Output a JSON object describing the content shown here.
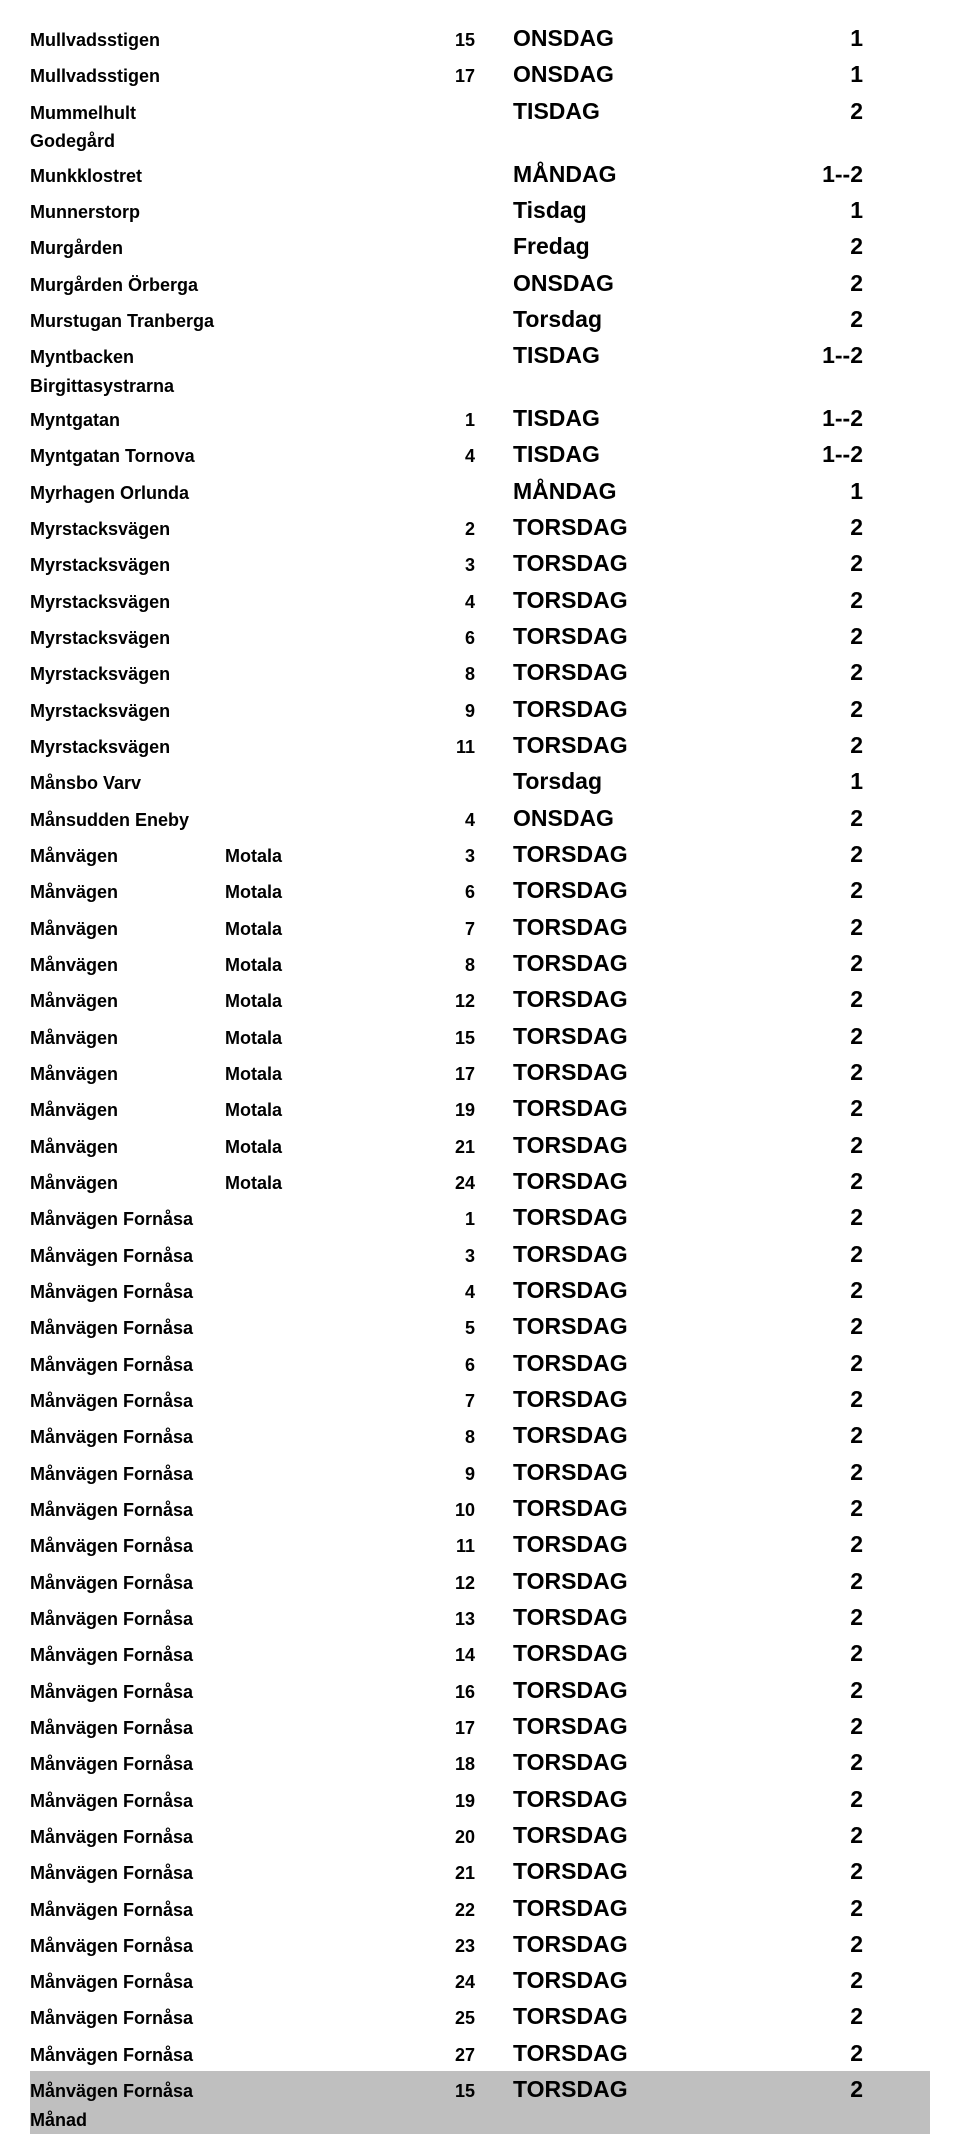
{
  "columns": {
    "text_color": "#000000",
    "bg_color": "#ffffff",
    "highlight_bg": "#bfbfbf",
    "c1_fontsize": 18,
    "c4_fontsize": 23
  },
  "rows": [
    {
      "c1": "Mullvadsstigen",
      "c2": "",
      "c3": "15",
      "c4": "ONSDAG",
      "c5": "1"
    },
    {
      "c1": "Mullvadsstigen",
      "c2": "",
      "c3": "17",
      "c4": "ONSDAG",
      "c5": "1"
    },
    {
      "c1": "Mummelhult Godegård",
      "c2": "",
      "c3": "",
      "c4": "TISDAG",
      "c5": "2"
    },
    {
      "c1": "Munkklostret",
      "c2": "",
      "c3": "",
      "c4": "MÅNDAG",
      "c5": "1--2"
    },
    {
      "c1": "Munnerstorp",
      "c2": "",
      "c3": "",
      "c4": "Tisdag",
      "c5": "1"
    },
    {
      "c1": "Murgården",
      "c2": "",
      "c3": "",
      "c4": "Fredag",
      "c5": "2"
    },
    {
      "c1": "Murgården Örberga",
      "c2": "",
      "c3": "",
      "c4": "ONSDAG",
      "c5": "2"
    },
    {
      "c1": "Murstugan Tranberga",
      "c2": "",
      "c3": "",
      "c4": "Torsdag",
      "c5": "2"
    },
    {
      "c1": "Myntbacken Birgittasystrarna",
      "c2": "",
      "c3": "",
      "c4": "TISDAG",
      "c5": "1--2"
    },
    {
      "c1": "Myntgatan",
      "c2": "",
      "c3": "1",
      "c4": "TISDAG",
      "c5": "1--2"
    },
    {
      "c1": "Myntgatan Tornova",
      "c2": "",
      "c3": "4",
      "c4": "TISDAG",
      "c5": "1--2"
    },
    {
      "c1": "Myrhagen Orlunda",
      "c2": "",
      "c3": "",
      "c4": "MÅNDAG",
      "c5": "1"
    },
    {
      "c1": "Myrstacksvägen",
      "c2": "",
      "c3": "2",
      "c4": "TORSDAG",
      "c5": "2"
    },
    {
      "c1": "Myrstacksvägen",
      "c2": "",
      "c3": "3",
      "c4": "TORSDAG",
      "c5": "2"
    },
    {
      "c1": "Myrstacksvägen",
      "c2": "",
      "c3": "4",
      "c4": "TORSDAG",
      "c5": "2"
    },
    {
      "c1": "Myrstacksvägen",
      "c2": "",
      "c3": "6",
      "c4": "TORSDAG",
      "c5": "2"
    },
    {
      "c1": "Myrstacksvägen",
      "c2": "",
      "c3": "8",
      "c4": "TORSDAG",
      "c5": "2"
    },
    {
      "c1": "Myrstacksvägen",
      "c2": "",
      "c3": "9",
      "c4": "TORSDAG",
      "c5": "2"
    },
    {
      "c1": "Myrstacksvägen",
      "c2": "",
      "c3": "11",
      "c4": "TORSDAG",
      "c5": "2"
    },
    {
      "c1": "Månsbo Varv",
      "c2": "",
      "c3": "",
      "c4": "Torsdag",
      "c5": "1"
    },
    {
      "c1": "Månsudden Eneby",
      "c2": "",
      "c3": "4",
      "c4": "ONSDAG",
      "c5": "2"
    },
    {
      "c1": "Månvägen",
      "c2": "Motala",
      "c3": "3",
      "c4": "TORSDAG",
      "c5": "2"
    },
    {
      "c1": "Månvägen",
      "c2": "Motala",
      "c3": "6",
      "c4": "TORSDAG",
      "c5": "2"
    },
    {
      "c1": "Månvägen",
      "c2": "Motala",
      "c3": "7",
      "c4": "TORSDAG",
      "c5": "2"
    },
    {
      "c1": "Månvägen",
      "c2": "Motala",
      "c3": "8",
      "c4": "TORSDAG",
      "c5": "2"
    },
    {
      "c1": "Månvägen",
      "c2": "Motala",
      "c3": "12",
      "c4": "TORSDAG",
      "c5": "2"
    },
    {
      "c1": "Månvägen",
      "c2": "Motala",
      "c3": "15",
      "c4": "TORSDAG",
      "c5": "2"
    },
    {
      "c1": "Månvägen",
      "c2": "Motala",
      "c3": "17",
      "c4": "TORSDAG",
      "c5": "2"
    },
    {
      "c1": "Månvägen",
      "c2": "Motala",
      "c3": "19",
      "c4": "TORSDAG",
      "c5": "2"
    },
    {
      "c1": "Månvägen",
      "c2": "Motala",
      "c3": "21",
      "c4": "TORSDAG",
      "c5": "2"
    },
    {
      "c1": "Månvägen",
      "c2": "Motala",
      "c3": "24",
      "c4": "TORSDAG",
      "c5": "2"
    },
    {
      "c1": "Månvägen  Fornåsa",
      "c2": "",
      "c3": "1",
      "c4": "TORSDAG",
      "c5": "2"
    },
    {
      "c1": "Månvägen  Fornåsa",
      "c2": "",
      "c3": "3",
      "c4": "TORSDAG",
      "c5": "2"
    },
    {
      "c1": "Månvägen  Fornåsa",
      "c2": "",
      "c3": "4",
      "c4": "TORSDAG",
      "c5": "2"
    },
    {
      "c1": "Månvägen  Fornåsa",
      "c2": "",
      "c3": "5",
      "c4": "TORSDAG",
      "c5": "2"
    },
    {
      "c1": "Månvägen  Fornåsa",
      "c2": "",
      "c3": "6",
      "c4": "TORSDAG",
      "c5": "2"
    },
    {
      "c1": "Månvägen  Fornåsa",
      "c2": "",
      "c3": "7",
      "c4": "TORSDAG",
      "c5": "2"
    },
    {
      "c1": "Månvägen  Fornåsa",
      "c2": "",
      "c3": "8",
      "c4": "TORSDAG",
      "c5": "2"
    },
    {
      "c1": "Månvägen  Fornåsa",
      "c2": "",
      "c3": "9",
      "c4": "TORSDAG",
      "c5": "2"
    },
    {
      "c1": "Månvägen  Fornåsa",
      "c2": "",
      "c3": "10",
      "c4": "TORSDAG",
      "c5": "2"
    },
    {
      "c1": "Månvägen  Fornåsa",
      "c2": "",
      "c3": "11",
      "c4": "TORSDAG",
      "c5": "2"
    },
    {
      "c1": "Månvägen  Fornåsa",
      "c2": "",
      "c3": "12",
      "c4": "TORSDAG",
      "c5": "2"
    },
    {
      "c1": "Månvägen  Fornåsa",
      "c2": "",
      "c3": "13",
      "c4": "TORSDAG",
      "c5": "2"
    },
    {
      "c1": "Månvägen  Fornåsa",
      "c2": "",
      "c3": "14",
      "c4": "TORSDAG",
      "c5": "2"
    },
    {
      "c1": "Månvägen  Fornåsa",
      "c2": "",
      "c3": "16",
      "c4": "TORSDAG",
      "c5": "2"
    },
    {
      "c1": "Månvägen  Fornåsa",
      "c2": "",
      "c3": "17",
      "c4": "TORSDAG",
      "c5": "2"
    },
    {
      "c1": "Månvägen  Fornåsa",
      "c2": "",
      "c3": "18",
      "c4": "TORSDAG",
      "c5": "2"
    },
    {
      "c1": "Månvägen  Fornåsa",
      "c2": "",
      "c3": "19",
      "c4": "TORSDAG",
      "c5": "2"
    },
    {
      "c1": "Månvägen  Fornåsa",
      "c2": "",
      "c3": "20",
      "c4": "TORSDAG",
      "c5": "2"
    },
    {
      "c1": "Månvägen  Fornåsa",
      "c2": "",
      "c3": "21",
      "c4": "TORSDAG",
      "c5": "2"
    },
    {
      "c1": "Månvägen  Fornåsa",
      "c2": "",
      "c3": "22",
      "c4": "TORSDAG",
      "c5": "2"
    },
    {
      "c1": "Månvägen  Fornåsa",
      "c2": "",
      "c3": "23",
      "c4": "TORSDAG",
      "c5": "2"
    },
    {
      "c1": "Månvägen  Fornåsa",
      "c2": "",
      "c3": "24",
      "c4": "TORSDAG",
      "c5": "2"
    },
    {
      "c1": "Månvägen  Fornåsa",
      "c2": "",
      "c3": "25",
      "c4": "TORSDAG",
      "c5": "2"
    },
    {
      "c1": "Månvägen  Fornåsa",
      "c2": "",
      "c3": "27",
      "c4": "TORSDAG",
      "c5": "2"
    },
    {
      "c1": "Månvägen Fornåsa  Månad",
      "c2": "",
      "c3": "15",
      "c4": "TORSDAG",
      "c5": "2",
      "highlight": true
    }
  ]
}
